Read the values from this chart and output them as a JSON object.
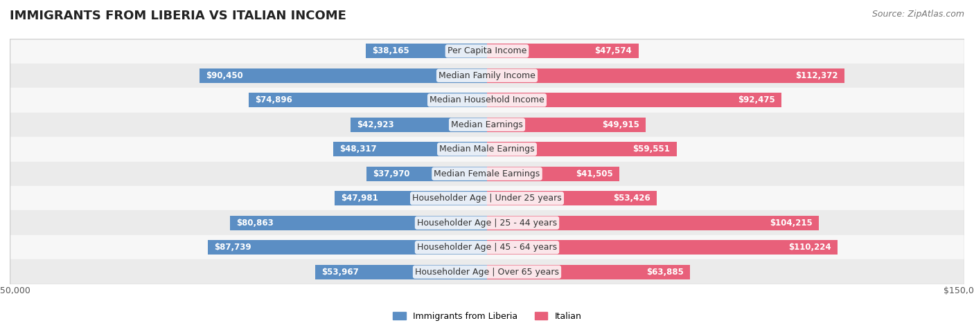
{
  "title": "IMMIGRANTS FROM LIBERIA VS ITALIAN INCOME",
  "source": "Source: ZipAtlas.com",
  "categories": [
    "Per Capita Income",
    "Median Family Income",
    "Median Household Income",
    "Median Earnings",
    "Median Male Earnings",
    "Median Female Earnings",
    "Householder Age | Under 25 years",
    "Householder Age | 25 - 44 years",
    "Householder Age | 45 - 64 years",
    "Householder Age | Over 65 years"
  ],
  "liberia_values": [
    38165,
    90450,
    74896,
    42923,
    48317,
    37970,
    47981,
    80863,
    87739,
    53967
  ],
  "italian_values": [
    47574,
    112372,
    92475,
    49915,
    59551,
    41505,
    53426,
    104215,
    110224,
    63885
  ],
  "liberia_color_light": "#a8c4e0",
  "liberia_color_dark": "#5b8ec4",
  "italian_color_light": "#f4a7bb",
  "italian_color_dark": "#e8607a",
  "bar_height": 0.6,
  "xlim": 150000,
  "bg_color": "#f0f0f0",
  "row_bg_light": "#f7f7f7",
  "row_bg_dark": "#ebebeb",
  "label_fontsize": 9,
  "title_fontsize": 13,
  "source_fontsize": 9,
  "value_fontsize": 8.5,
  "threshold_dark_label": 30000
}
